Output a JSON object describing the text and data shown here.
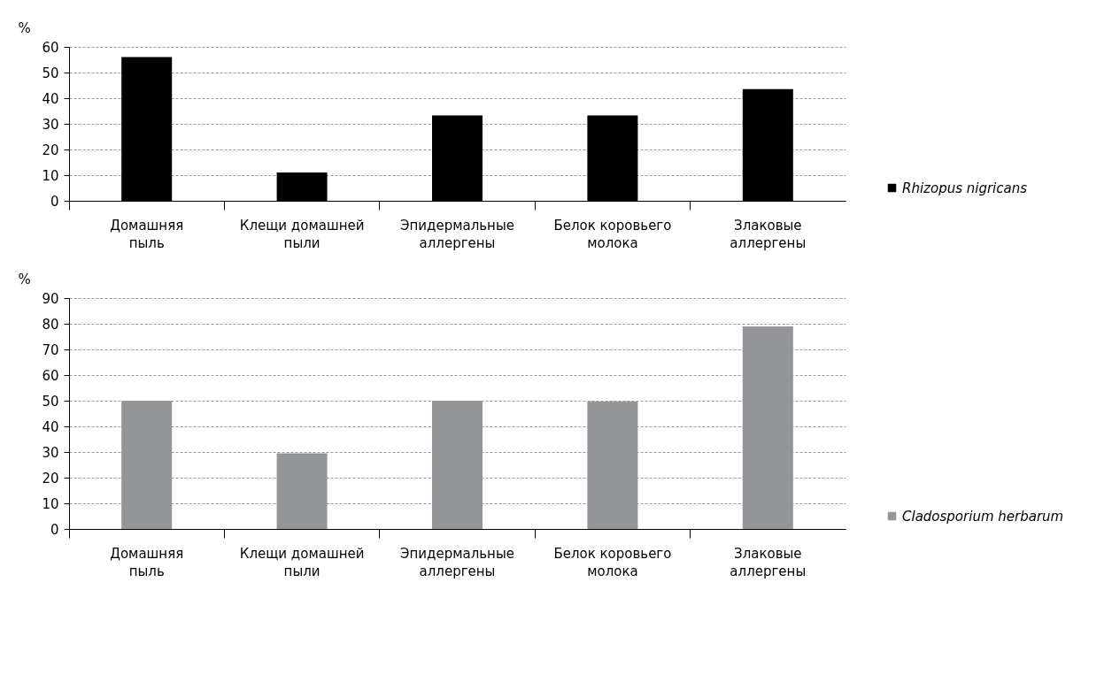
{
  "chart_data": [
    {
      "type": "bar",
      "ylabel": "%",
      "categories": [
        "Домашняя пыль",
        "Клещи домашней пыли",
        "Эпидермальные аллергены",
        "Белок коровьего молока",
        "Злаковые аллергены"
      ],
      "series": [
        {
          "name": "Rhizopus nigricans",
          "color": "#000000",
          "values": [
            56,
            11,
            33.3,
            33.3,
            43.5
          ]
        }
      ],
      "ylim": [
        0,
        60
      ],
      "yticks": [
        0,
        10,
        20,
        30,
        40,
        50,
        60
      ],
      "grid": "y",
      "legend": "right"
    },
    {
      "type": "bar",
      "ylabel": "%",
      "categories": [
        "Домашняя пыль",
        "Клещи домашней пыли",
        "Эпидермальные аллергены",
        "Белок коровьего молока",
        "Злаковые аллергены"
      ],
      "series": [
        {
          "name": "Cladosporium herbarum",
          "color": "#939598",
          "values": [
            50,
            29.5,
            50,
            49.7,
            79
          ]
        }
      ],
      "ylim": [
        0,
        90
      ],
      "yticks": [
        0,
        10,
        20,
        30,
        40,
        50,
        60,
        70,
        80,
        90
      ],
      "grid": "y",
      "legend": "right"
    }
  ]
}
